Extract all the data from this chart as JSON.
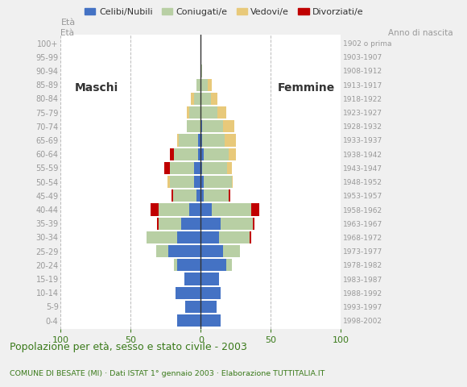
{
  "age_groups": [
    "0-4",
    "5-9",
    "10-14",
    "15-19",
    "20-24",
    "25-29",
    "30-34",
    "35-39",
    "40-44",
    "45-49",
    "50-54",
    "55-59",
    "60-64",
    "65-69",
    "70-74",
    "75-79",
    "80-84",
    "85-89",
    "90-94",
    "95-99",
    "100+"
  ],
  "year_labels": [
    "1998-2002",
    "1993-1997",
    "1988-1992",
    "1983-1987",
    "1978-1982",
    "1973-1977",
    "1968-1972",
    "1963-1967",
    "1958-1962",
    "1953-1957",
    "1948-1952",
    "1943-1947",
    "1938-1942",
    "1933-1937",
    "1928-1932",
    "1923-1927",
    "1918-1922",
    "1913-1917",
    "1908-1912",
    "1903-1907",
    "1902 o prima"
  ],
  "males": {
    "celibe": [
      17,
      11,
      18,
      12,
      17,
      23,
      17,
      14,
      8,
      3,
      5,
      5,
      2,
      2,
      0,
      0,
      0,
      0,
      0,
      0,
      0
    ],
    "coniugato": [
      0,
      0,
      0,
      0,
      2,
      9,
      22,
      16,
      22,
      17,
      17,
      17,
      17,
      14,
      10,
      8,
      5,
      3,
      0,
      0,
      0
    ],
    "vedovo": [
      0,
      0,
      0,
      0,
      0,
      0,
      0,
      0,
      0,
      0,
      2,
      0,
      0,
      1,
      0,
      2,
      2,
      0,
      0,
      0,
      0
    ],
    "divorziato": [
      0,
      0,
      0,
      0,
      0,
      0,
      0,
      1,
      6,
      1,
      0,
      4,
      3,
      0,
      0,
      0,
      0,
      0,
      0,
      0,
      0
    ]
  },
  "females": {
    "nubile": [
      14,
      11,
      14,
      13,
      18,
      16,
      13,
      14,
      8,
      2,
      2,
      1,
      2,
      1,
      1,
      0,
      0,
      0,
      0,
      0,
      0
    ],
    "coniugata": [
      0,
      0,
      0,
      0,
      4,
      12,
      22,
      23,
      28,
      18,
      20,
      18,
      18,
      16,
      15,
      12,
      7,
      5,
      1,
      0,
      0
    ],
    "vedova": [
      0,
      0,
      0,
      0,
      0,
      0,
      0,
      0,
      0,
      0,
      1,
      3,
      5,
      8,
      8,
      6,
      5,
      3,
      0,
      0,
      0
    ],
    "divorziata": [
      0,
      0,
      0,
      0,
      0,
      0,
      1,
      1,
      6,
      1,
      0,
      0,
      0,
      0,
      0,
      0,
      0,
      0,
      0,
      0,
      0
    ]
  },
  "colors": {
    "celibe": "#4472c4",
    "coniugato": "#b8cfa4",
    "vedovo": "#e8c97a",
    "divorziato": "#c00000"
  },
  "xlim": 100,
  "title": "Popolazione per età, sesso e stato civile - 2003",
  "subtitle": "COMUNE DI BESATE (MI) · Dati ISTAT 1° gennaio 2003 · Elaborazione TUTTITALIA.IT",
  "legend_labels": [
    "Celibi/Nubili",
    "Coniugati/e",
    "Vedovi/e",
    "Divorziati/e"
  ],
  "background_color": "#f0f0f0",
  "plot_bg": "#ffffff",
  "title_color": "#3a7a1a",
  "subtitle_color": "#3a7a1a",
  "tick_color": "#3a7a1a",
  "grid_color": "#bbbbbb",
  "year_label_color": "#999999",
  "age_label_color": "#999999"
}
